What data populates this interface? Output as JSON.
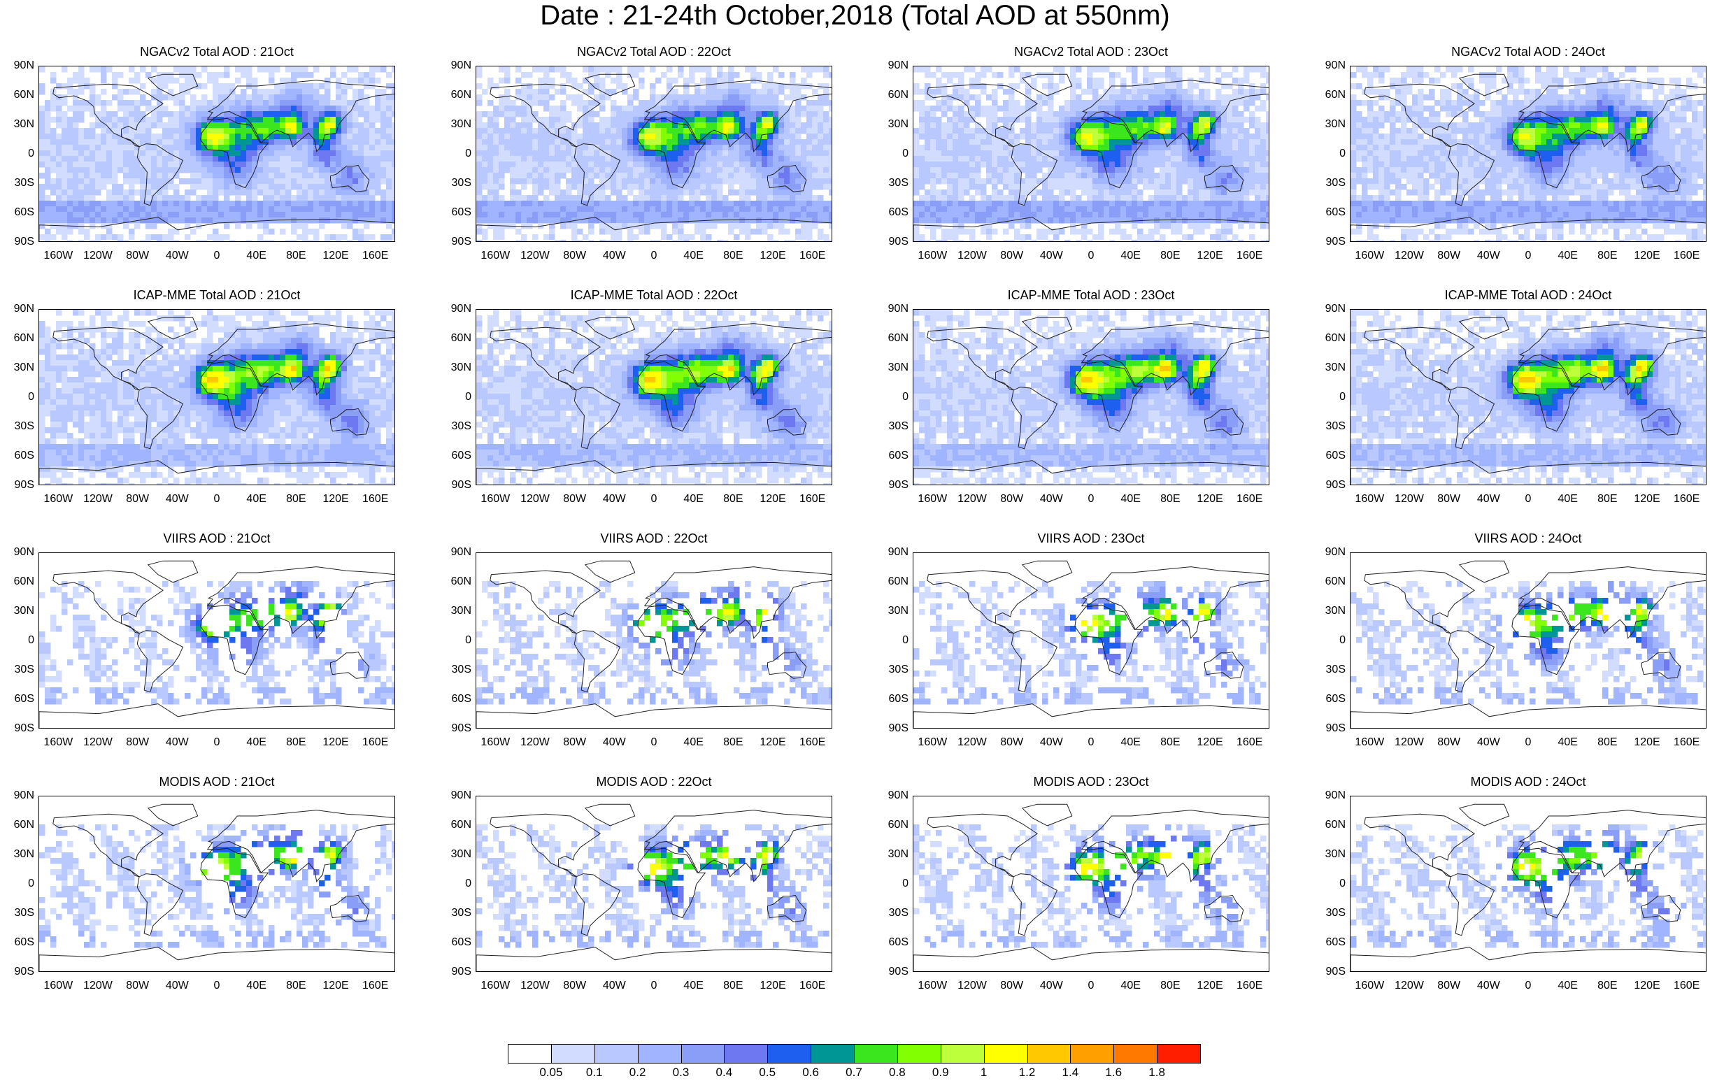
{
  "title": "Date : 21-24th October,2018 (Total AOD at 550nm)",
  "panels": [
    {
      "title": "NGACv2 Total AOD : 21Oct",
      "model": "ngac",
      "seed": 11
    },
    {
      "title": "NGACv2 Total AOD : 22Oct",
      "model": "ngac",
      "seed": 12
    },
    {
      "title": "NGACv2 Total AOD : 23Oct",
      "model": "ngac",
      "seed": 13
    },
    {
      "title": "NGACv2 Total AOD : 24Oct",
      "model": "ngac",
      "seed": 14
    },
    {
      "title": "ICAP-MME Total AOD : 21Oct",
      "model": "icap",
      "seed": 21
    },
    {
      "title": "ICAP-MME Total AOD : 22Oct",
      "model": "icap",
      "seed": 22
    },
    {
      "title": "ICAP-MME Total AOD : 23Oct",
      "model": "icap",
      "seed": 23
    },
    {
      "title": "ICAP-MME Total AOD : 24Oct",
      "model": "icap",
      "seed": 24
    },
    {
      "title": "VIIRS AOD : 21Oct",
      "model": "sat",
      "seed": 31
    },
    {
      "title": "VIIRS AOD : 22Oct",
      "model": "sat",
      "seed": 32
    },
    {
      "title": "VIIRS AOD : 23Oct",
      "model": "sat",
      "seed": 33
    },
    {
      "title": "VIIRS AOD : 24Oct",
      "model": "sat",
      "seed": 34
    },
    {
      "title": "MODIS AOD : 21Oct",
      "model": "sat2",
      "seed": 41
    },
    {
      "title": "MODIS AOD : 22Oct",
      "model": "sat2",
      "seed": 42
    },
    {
      "title": "MODIS AOD : 23Oct",
      "model": "sat2",
      "seed": 43
    },
    {
      "title": "MODIS AOD : 24Oct",
      "model": "sat2",
      "seed": 44
    }
  ],
  "lat_labels": [
    "90N",
    "60N",
    "30N",
    "0",
    "30S",
    "60S",
    "90S"
  ],
  "lon_labels": [
    "160W",
    "120W",
    "80W",
    "40W",
    "0",
    "40E",
    "80E",
    "120E",
    "160E"
  ],
  "colorbar": {
    "labels": [
      "0.05",
      "0.1",
      "0.2",
      "0.3",
      "0.4",
      "0.5",
      "0.6",
      "0.7",
      "0.8",
      "0.9",
      "1",
      "1.2",
      "1.4",
      "1.6",
      "1.8"
    ],
    "colors": [
      "#ffffff",
      "#d2dcff",
      "#b9c8ff",
      "#a0b4ff",
      "#8a9ef8",
      "#6e78f0",
      "#1e5ff0",
      "#009696",
      "#3ce61e",
      "#82ff00",
      "#beff3c",
      "#ffff00",
      "#ffc800",
      "#ffa000",
      "#ff7800",
      "#ff1e00"
    ]
  }
}
